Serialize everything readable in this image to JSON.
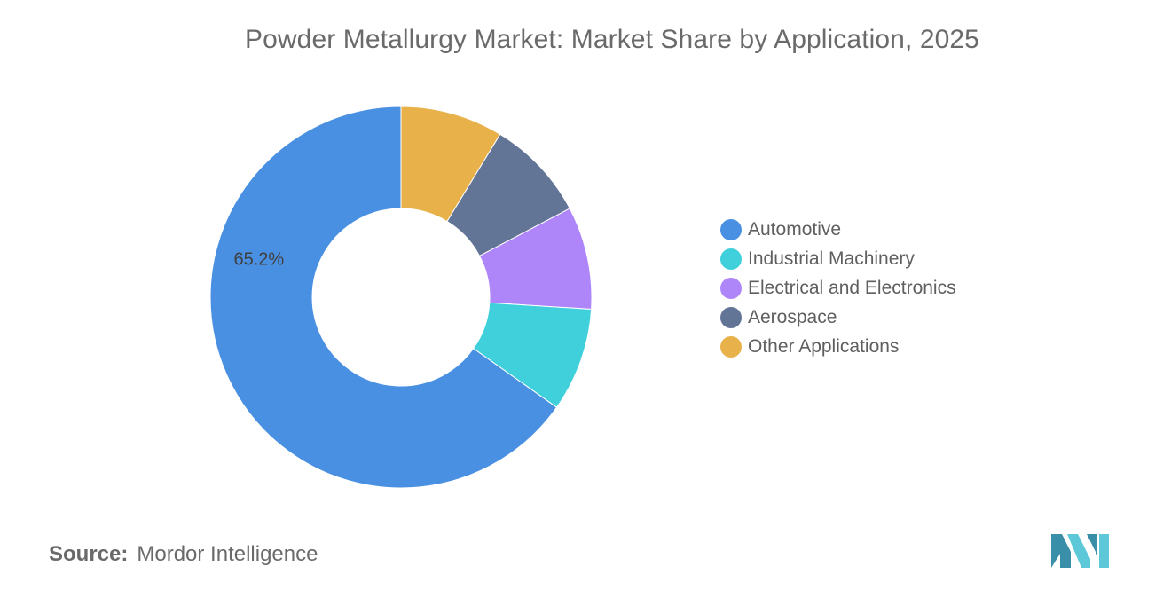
{
  "chart_data": {
    "type": "pie",
    "title": "Powder Metallurgy Market: Market Share by Application, 2025",
    "donut": true,
    "legend_position": "right",
    "categories": [
      "Automotive",
      "Industrial Machinery",
      "Electrical and Electronics",
      "Aerospace",
      "Other Applications"
    ],
    "values": [
      65.2,
      8.8,
      8.7,
      8.6,
      8.7
    ],
    "colors": [
      "#4a90e2",
      "#3fd0dc",
      "#ae86fa",
      "#627597",
      "#e8b14a"
    ],
    "data_labels": [
      "65.2%",
      "",
      "",
      "",
      ""
    ]
  },
  "source": {
    "label": "Source:",
    "value": "Mordor Intelligence"
  },
  "logo": {
    "icon": "mordor-intelligence-logo",
    "colors": [
      "#3a8fa8",
      "#5cc8d8"
    ]
  }
}
